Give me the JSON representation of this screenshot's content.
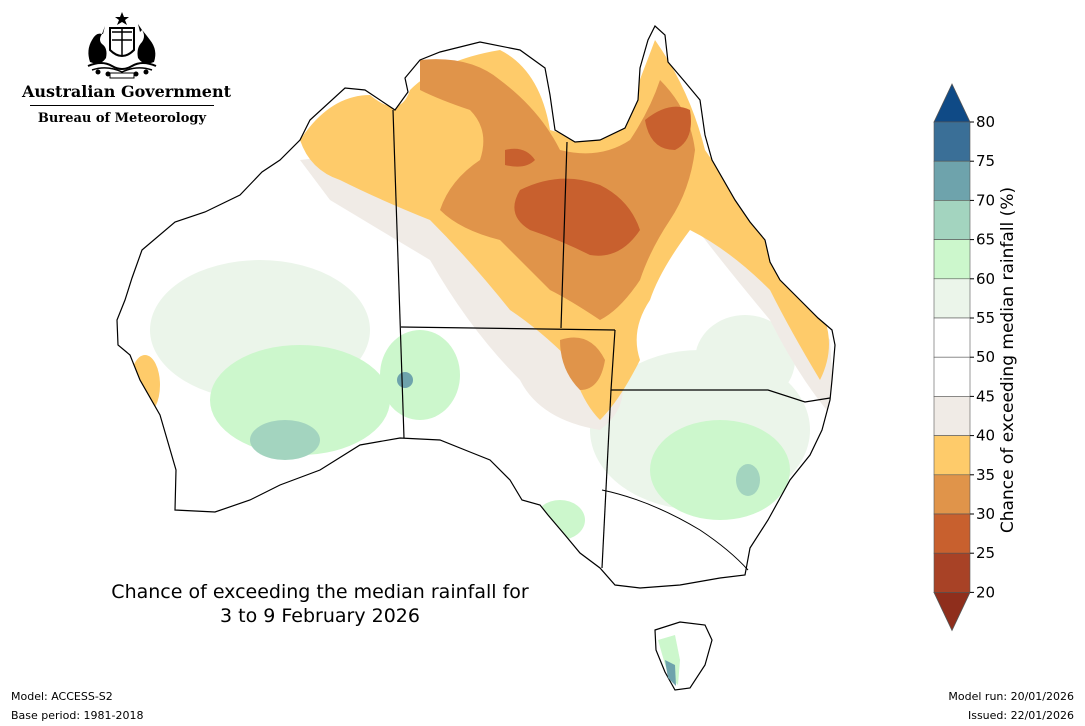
{
  "logo": {
    "government": "Australian Government",
    "agency": "Bureau of Meteorology"
  },
  "map": {
    "title_line1": "Chance of exceeding the median rainfall for",
    "title_line2": "3 to 9 February 2026"
  },
  "colorbar": {
    "label": "Chance of exceeding median rainfall (%)",
    "ticks": [
      "80",
      "75",
      "70",
      "65",
      "60",
      "55",
      "50",
      "45",
      "40",
      "35",
      "30",
      "25",
      "20"
    ],
    "bins": [
      {
        "range": "75-80",
        "color": "#3a6f97"
      },
      {
        "range": "70-75",
        "color": "#6ea3ac"
      },
      {
        "range": "65-70",
        "color": "#a3d4bf"
      },
      {
        "range": "60-65",
        "color": "#ccf7cc"
      },
      {
        "range": "55-60",
        "color": "#ebf5ea"
      },
      {
        "range": "50-55",
        "color": "#ffffff"
      },
      {
        "range": "45-50",
        "color": "#ffffff"
      },
      {
        "range": "40-45",
        "color": "#f0ebe6"
      },
      {
        "range": "35-40",
        "color": "#fecb6a"
      },
      {
        "range": "30-35",
        "color": "#e0944a"
      },
      {
        "range": "25-30",
        "color": "#c8602e"
      },
      {
        "range": "20-25",
        "color": "#a84226"
      }
    ],
    "top_arrow_color": "#0f4a86",
    "bottom_arrow_color": "#8f2e1c"
  },
  "footer": {
    "model": "Model: ACCESS-S2",
    "base_period": "Base period: 1981-2018",
    "model_run": "Model run: 20/01/2026",
    "issued": "Issued: 22/01/2026"
  }
}
